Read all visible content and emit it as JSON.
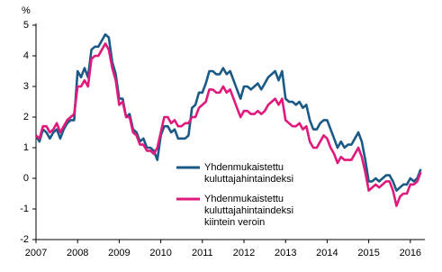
{
  "chart_data": {
    "type": "line",
    "y_label": "%",
    "x": [
      2007,
      2007.083,
      2007.167,
      2007.25,
      2007.333,
      2007.417,
      2007.5,
      2007.583,
      2007.667,
      2007.75,
      2007.833,
      2007.917,
      2008,
      2008.083,
      2008.167,
      2008.25,
      2008.333,
      2008.417,
      2008.5,
      2008.583,
      2008.667,
      2008.75,
      2008.833,
      2008.917,
      2009,
      2009.083,
      2009.167,
      2009.25,
      2009.333,
      2009.417,
      2009.5,
      2009.583,
      2009.667,
      2009.75,
      2009.833,
      2009.917,
      2010,
      2010.083,
      2010.167,
      2010.25,
      2010.333,
      2010.417,
      2010.5,
      2010.583,
      2010.667,
      2010.75,
      2010.833,
      2010.917,
      2011,
      2011.083,
      2011.167,
      2011.25,
      2011.333,
      2011.417,
      2011.5,
      2011.583,
      2011.667,
      2011.75,
      2011.833,
      2011.917,
      2012,
      2012.083,
      2012.167,
      2012.25,
      2012.333,
      2012.417,
      2012.5,
      2012.583,
      2012.667,
      2012.75,
      2012.833,
      2012.917,
      2013,
      2013.083,
      2013.167,
      2013.25,
      2013.333,
      2013.417,
      2013.5,
      2013.583,
      2013.667,
      2013.75,
      2013.833,
      2013.917,
      2014,
      2014.083,
      2014.167,
      2014.25,
      2014.333,
      2014.417,
      2014.5,
      2014.583,
      2014.667,
      2014.75,
      2014.833,
      2014.917,
      2015,
      2015.083,
      2015.167,
      2015.25,
      2015.333,
      2015.417,
      2015.5,
      2015.583,
      2015.667,
      2015.75,
      2015.833,
      2015.917,
      2016,
      2016.083,
      2016.167,
      2016.25
    ],
    "series": [
      {
        "name": [
          "Yhdenmukaistettu",
          "kuluttajahintaindeksi"
        ],
        "color": "#1b5a86",
        "values": [
          1.4,
          1.2,
          1.6,
          1.5,
          1.3,
          1.5,
          1.6,
          1.3,
          1.6,
          1.8,
          1.9,
          1.9,
          3.5,
          3.3,
          3.6,
          3.3,
          4.2,
          4.3,
          4.3,
          4.5,
          4.7,
          4.6,
          3.8,
          3.4,
          2.6,
          2.6,
          2.0,
          2.1,
          1.6,
          1.5,
          1.2,
          1.3,
          1.0,
          1.0,
          0.9,
          0.6,
          1.4,
          1.7,
          1.7,
          1.5,
          1.6,
          1.3,
          1.3,
          1.3,
          1.4,
          2.3,
          2.4,
          2.8,
          2.8,
          3.1,
          3.5,
          3.5,
          3.4,
          3.4,
          3.6,
          3.4,
          3.5,
          3.2,
          2.9,
          2.6,
          3.0,
          3.0,
          2.9,
          3.0,
          3.1,
          2.9,
          3.1,
          3.3,
          3.4,
          3.5,
          3.2,
          3.5,
          2.6,
          2.5,
          2.5,
          2.4,
          2.5,
          2.3,
          2.4,
          1.9,
          1.6,
          1.6,
          1.8,
          1.9,
          1.9,
          1.6,
          1.3,
          1.0,
          1.2,
          1.0,
          1.1,
          1.1,
          1.3,
          1.5,
          1.2,
          0.6,
          -0.1,
          -0.1,
          0.0,
          -0.1,
          0.0,
          0.1,
          0.1,
          -0.1,
          -0.4,
          -0.3,
          -0.2,
          -0.2,
          0.0,
          -0.1,
          0.0,
          0.3
        ]
      },
      {
        "name": [
          "Yhdenmukaistettu",
          "kuluttajahintaindeksi",
          "kiintein veroin"
        ],
        "color": "#e0197d",
        "values": [
          1.4,
          1.3,
          1.7,
          1.7,
          1.5,
          1.6,
          1.8,
          1.5,
          1.7,
          1.9,
          2.0,
          2.1,
          3.0,
          3.0,
          3.2,
          3.0,
          3.9,
          4.0,
          4.0,
          4.2,
          4.4,
          4.2,
          3.6,
          3.2,
          2.4,
          2.5,
          2.0,
          2.0,
          1.5,
          1.4,
          1.1,
          1.1,
          0.9,
          0.9,
          0.8,
          1.0,
          1.5,
          2.0,
          2.0,
          1.8,
          1.9,
          1.7,
          1.7,
          1.8,
          1.8,
          2.0,
          2.0,
          2.3,
          2.4,
          2.5,
          2.9,
          2.9,
          2.8,
          2.8,
          3.0,
          2.8,
          2.9,
          2.6,
          2.3,
          2.0,
          2.2,
          2.2,
          2.1,
          2.1,
          2.2,
          2.1,
          2.2,
          2.4,
          2.5,
          2.6,
          2.4,
          2.6,
          1.9,
          1.8,
          1.7,
          1.7,
          1.8,
          1.6,
          1.7,
          1.2,
          1.0,
          1.0,
          1.2,
          1.4,
          1.3,
          1.0,
          0.8,
          0.5,
          0.7,
          0.6,
          0.6,
          0.6,
          0.8,
          1.0,
          0.7,
          0.2,
          -0.4,
          -0.3,
          -0.2,
          -0.3,
          -0.2,
          -0.1,
          -0.1,
          -0.4,
          -0.9,
          -0.6,
          -0.5,
          -0.5,
          -0.2,
          -0.2,
          -0.1,
          0.2
        ]
      }
    ],
    "xlim": [
      2007,
      2016.35
    ],
    "xticks": [
      2007,
      2008,
      2009,
      2010,
      2011,
      2012,
      2013,
      2014,
      2015,
      2016
    ],
    "ylim": [
      -2,
      5
    ],
    "yticks": [
      -2,
      -1,
      0,
      1,
      2,
      3,
      4,
      5
    ],
    "grid": false
  }
}
